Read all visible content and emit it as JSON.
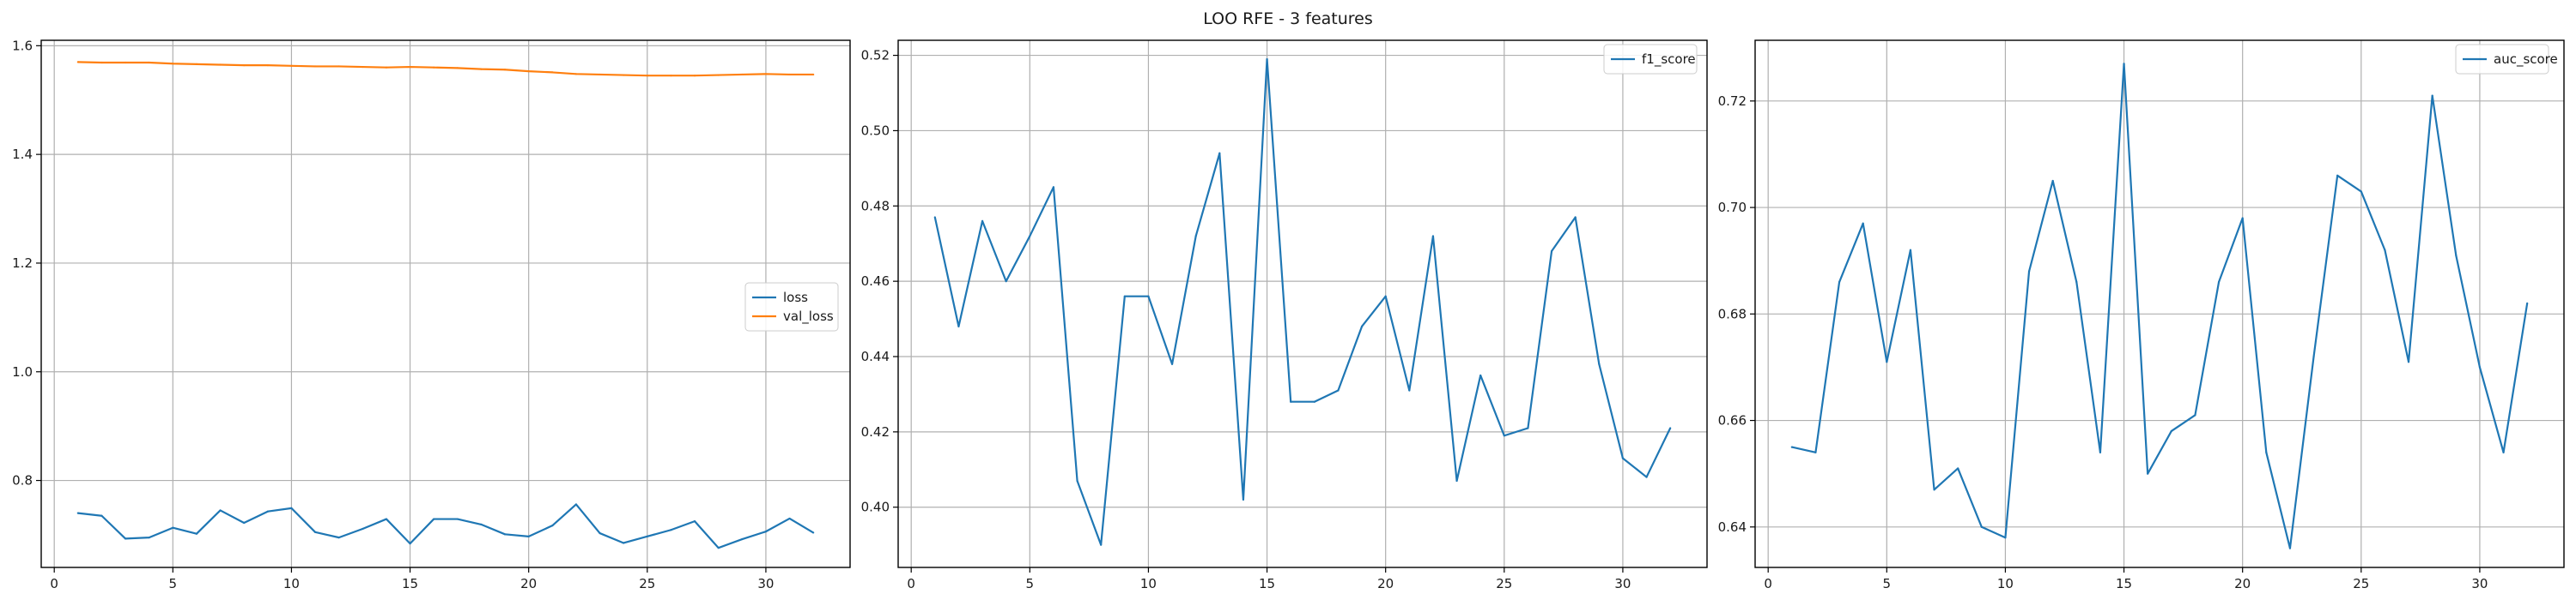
{
  "figure": {
    "title": "LOO RFE - 3 features"
  },
  "colors": {
    "blue": "#1f77b4",
    "orange": "#ff7f0e",
    "grid": "#b0b0b0",
    "axes": "#000000"
  },
  "chart_data": [
    {
      "type": "line",
      "x": [
        1,
        2,
        3,
        4,
        5,
        6,
        7,
        8,
        9,
        10,
        11,
        12,
        13,
        14,
        15,
        16,
        17,
        18,
        19,
        20,
        21,
        22,
        23,
        24,
        25,
        26,
        27,
        28,
        29,
        30,
        31,
        32
      ],
      "series": [
        {
          "name": "loss",
          "color": "#1f77b4",
          "values": [
            0.74,
            0.735,
            0.693,
            0.695,
            0.713,
            0.702,
            0.745,
            0.722,
            0.743,
            0.749,
            0.705,
            0.695,
            0.711,
            0.729,
            0.684,
            0.729,
            0.729,
            0.719,
            0.701,
            0.697,
            0.717,
            0.756,
            0.703,
            0.685,
            0.697,
            0.709,
            0.725,
            0.676,
            0.692,
            0.706,
            0.73,
            0.704
          ]
        },
        {
          "name": "val_loss",
          "color": "#ff7f0e",
          "values": [
            1.57,
            1.569,
            1.569,
            1.569,
            1.567,
            1.566,
            1.565,
            1.564,
            1.564,
            1.563,
            1.562,
            1.562,
            1.561,
            1.56,
            1.561,
            1.56,
            1.559,
            1.557,
            1.556,
            1.553,
            1.551,
            1.548,
            1.547,
            1.546,
            1.545,
            1.545,
            1.545,
            1.546,
            1.547,
            1.548,
            1.547,
            1.547
          ]
        }
      ],
      "xlim": [
        -0.55,
        33.55
      ],
      "ylim": [
        0.64,
        1.61
      ],
      "xticks": [
        0,
        5,
        10,
        15,
        20,
        25,
        30
      ],
      "yticks": [
        0.8,
        1.0,
        1.2,
        1.4,
        1.6
      ],
      "ytick_labels": [
        "0.8",
        "1.0",
        "1.2",
        "1.4",
        "1.6"
      ],
      "grid": true,
      "legend": "center-right"
    },
    {
      "type": "line",
      "x": [
        1,
        2,
        3,
        4,
        5,
        6,
        7,
        8,
        9,
        10,
        11,
        12,
        13,
        14,
        15,
        16,
        17,
        18,
        19,
        20,
        21,
        22,
        23,
        24,
        25,
        26,
        27,
        28,
        29,
        30,
        31,
        32
      ],
      "series": [
        {
          "name": "f1_score",
          "color": "#1f77b4",
          "values": [
            0.477,
            0.448,
            0.476,
            0.46,
            0.472,
            0.485,
            0.407,
            0.39,
            0.456,
            0.456,
            0.438,
            0.472,
            0.494,
            0.402,
            0.519,
            0.428,
            0.428,
            0.431,
            0.448,
            0.456,
            0.431,
            0.472,
            0.407,
            0.435,
            0.419,
            0.421,
            0.468,
            0.477,
            0.438,
            0.413,
            0.408,
            0.421
          ]
        }
      ],
      "xlim": [
        -0.55,
        33.55
      ],
      "ylim": [
        0.384,
        0.524
      ],
      "xticks": [
        0,
        5,
        10,
        15,
        20,
        25,
        30
      ],
      "yticks": [
        0.4,
        0.42,
        0.44,
        0.46,
        0.48,
        0.5,
        0.52
      ],
      "ytick_labels": [
        "0.40",
        "0.42",
        "0.44",
        "0.46",
        "0.48",
        "0.50",
        "0.52"
      ],
      "grid": true,
      "legend": "top-right"
    },
    {
      "type": "line",
      "x": [
        1,
        2,
        3,
        4,
        5,
        6,
        7,
        8,
        9,
        10,
        11,
        12,
        13,
        14,
        15,
        16,
        17,
        18,
        19,
        20,
        21,
        22,
        23,
        24,
        25,
        26,
        27,
        28,
        29,
        30,
        31,
        32
      ],
      "series": [
        {
          "name": "auc_score",
          "color": "#1f77b4",
          "values": [
            0.655,
            0.654,
            0.686,
            0.697,
            0.671,
            0.692,
            0.647,
            0.651,
            0.64,
            0.638,
            0.688,
            0.705,
            0.686,
            0.654,
            0.727,
            0.65,
            0.658,
            0.661,
            0.686,
            0.698,
            0.654,
            0.636,
            0.672,
            0.706,
            0.703,
            0.692,
            0.671,
            0.721,
            0.691,
            0.67,
            0.654,
            0.682
          ]
        }
      ],
      "xlim": [
        -0.55,
        33.55
      ],
      "ylim": [
        0.6324,
        0.7314
      ],
      "xticks": [
        0,
        5,
        10,
        15,
        20,
        25,
        30
      ],
      "yticks": [
        0.64,
        0.66,
        0.68,
        0.7,
        0.72
      ],
      "ytick_labels": [
        "0.64",
        "0.66",
        "0.68",
        "0.70",
        "0.72"
      ],
      "grid": true,
      "legend": "top-right"
    }
  ]
}
